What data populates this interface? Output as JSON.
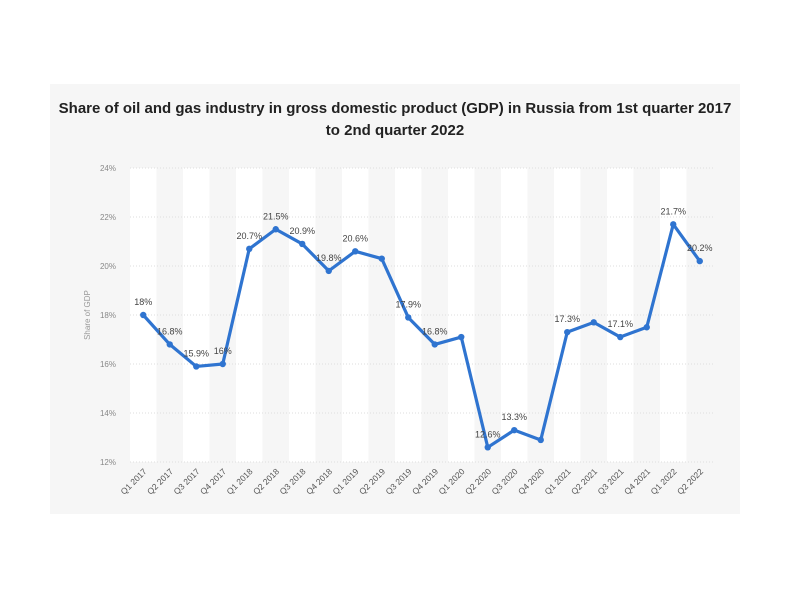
{
  "chart_data": {
    "type": "line",
    "title": "Share of oil and gas industry in gross domestic product (GDP) in Russia from 1st quarter 2017 to 2nd quarter 2022",
    "ylabel": "Share of GDP",
    "xlabel": "",
    "ylim": [
      12,
      24
    ],
    "yticks": [
      "12%",
      "14%",
      "16%",
      "18%",
      "20%",
      "22%",
      "24%"
    ],
    "grid": true,
    "legend": "none",
    "color": "#2f74d0",
    "categories": [
      "Q1 2017",
      "Q2 2017",
      "Q3 2017",
      "Q4 2017",
      "Q1 2018",
      "Q2 2018",
      "Q3 2018",
      "Q4 2018",
      "Q1 2019",
      "Q2 2019",
      "Q3 2019",
      "Q4 2019",
      "Q1 2020",
      "Q2 2020",
      "Q3 2020",
      "Q4 2020",
      "Q1 2021",
      "Q2 2021",
      "Q3 2021",
      "Q4 2021",
      "Q1 2022",
      "Q2 2022"
    ],
    "values": [
      18,
      16.8,
      15.9,
      16,
      20.7,
      21.5,
      20.9,
      19.8,
      20.6,
      20.3,
      17.9,
      16.8,
      17.1,
      12.6,
      13.3,
      12.9,
      17.3,
      17.7,
      17.1,
      17.5,
      21.7,
      20.2
    ],
    "data_labels": [
      "18%",
      "16.8%",
      "15.9%",
      "16%",
      "20.7%",
      "21.5%",
      "20.9%",
      "19.8%",
      "20.6%",
      "",
      "17.9%",
      "16.8%",
      "",
      "12.6%",
      "13.3%",
      "",
      "17.3%",
      "",
      "17.1%",
      "",
      "21.7%",
      "20.2%"
    ]
  }
}
